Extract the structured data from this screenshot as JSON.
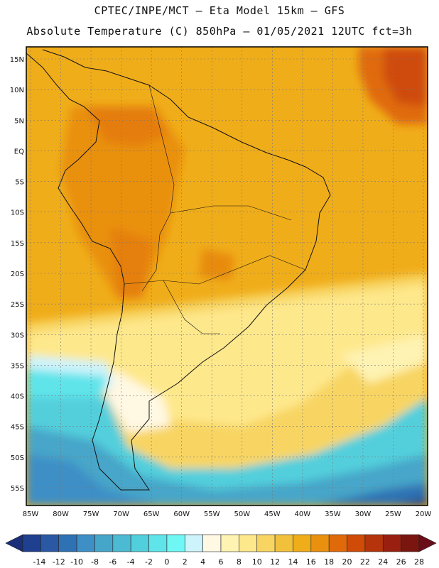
{
  "header": {
    "line1": "CPTEC/INPE/MCT –  Eta Model 15km – GFS",
    "line2": "Absolute Temperature (C) 850hPa – 01/05/2021 12UTC fct=3h"
  },
  "map": {
    "lat_labels": [
      "15N",
      "10N",
      "5N",
      "EQ",
      "5S",
      "10S",
      "15S",
      "20S",
      "25S",
      "30S",
      "35S",
      "40S",
      "45S",
      "50S",
      "55S"
    ],
    "lat_values": [
      15,
      10,
      5,
      0,
      -5,
      -10,
      -15,
      -20,
      -25,
      -30,
      -35,
      -40,
      -45,
      -50,
      -55
    ],
    "lon_labels": [
      "85W",
      "80W",
      "75W",
      "70W",
      "65W",
      "60W",
      "55W",
      "50W",
      "45W",
      "40W",
      "35W",
      "30W",
      "25W",
      "20W"
    ],
    "lon_values": [
      -85,
      -80,
      -75,
      -70,
      -65,
      -60,
      -55,
      -50,
      -45,
      -40,
      -35,
      -30,
      -25,
      -20
    ],
    "grid": true
  },
  "colorbar": {
    "labels": [
      "-14",
      "-12",
      "-10",
      "-8",
      "-6",
      "-4",
      "-2",
      "0",
      "2",
      "4",
      "6",
      "8",
      "10",
      "12",
      "14",
      "16",
      "18",
      "20",
      "22",
      "24",
      "26",
      "28"
    ],
    "colors": [
      "#1f3f8f",
      "#2a58a3",
      "#2f72b4",
      "#3e8fc6",
      "#46a6c9",
      "#4bbad2",
      "#52cfdc",
      "#5fe4ea",
      "#6ff7f5",
      "#cdf3fb",
      "#fff8e3",
      "#fef3b2",
      "#fee88c",
      "#f8d563",
      "#f1c13c",
      "#f0ad1a",
      "#e9900f",
      "#e06a0a",
      "#cf4b07",
      "#b5340b",
      "#992010",
      "#7a1510"
    ]
  }
}
